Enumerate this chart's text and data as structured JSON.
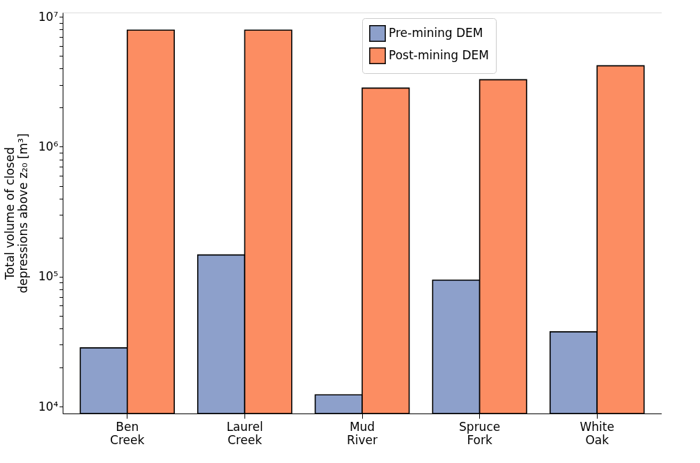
{
  "chart_data": {
    "type": "bar",
    "ylabel": "Total volume of closed\ndepressions above z₂₀ [m³]",
    "categories": [
      "Ben\nCreek",
      "Laurel\nCreek",
      "Mud\nRiver",
      "Spruce\nFork",
      "White\nOak"
    ],
    "series": [
      {
        "name": "Pre-mining DEM",
        "color": "#8da0cb",
        "values": [
          28300,
          147000,
          12300,
          94000,
          37600
        ]
      },
      {
        "name": "Post-mining DEM",
        "color": "#fc8d62",
        "values": [
          7900000,
          7900000,
          2830000,
          3280000,
          4200000
        ]
      }
    ],
    "log": "y",
    "ylim": [
      8840,
      10800000
    ],
    "yticks": [
      {
        "value": 10000,
        "label": "10⁴"
      },
      {
        "value": 20000,
        "label": null
      },
      {
        "value": 30000,
        "label": null
      },
      {
        "value": 40000,
        "label": null
      },
      {
        "value": 50000,
        "label": null
      },
      {
        "value": 60000,
        "label": null
      },
      {
        "value": 70000,
        "label": null
      },
      {
        "value": 80000,
        "label": null
      },
      {
        "value": 90000,
        "label": null
      },
      {
        "value": 100000,
        "label": "10⁵"
      },
      {
        "value": 200000,
        "label": null
      },
      {
        "value": 300000,
        "label": null
      },
      {
        "value": 400000,
        "label": null
      },
      {
        "value": 500000,
        "label": null
      },
      {
        "value": 600000,
        "label": null
      },
      {
        "value": 700000,
        "label": null
      },
      {
        "value": 800000,
        "label": null
      },
      {
        "value": 900000,
        "label": null
      },
      {
        "value": 1000000,
        "label": "10⁶"
      },
      {
        "value": 2000000,
        "label": null
      },
      {
        "value": 3000000,
        "label": null
      },
      {
        "value": 4000000,
        "label": null
      },
      {
        "value": 5000000,
        "label": null
      },
      {
        "value": 6000000,
        "label": null
      },
      {
        "value": 7000000,
        "label": null
      },
      {
        "value": 8000000,
        "label": null
      },
      {
        "value": 9000000,
        "label": null
      },
      {
        "value": 10000000,
        "label": "10⁷"
      }
    ],
    "grid": false,
    "legend": "top"
  }
}
